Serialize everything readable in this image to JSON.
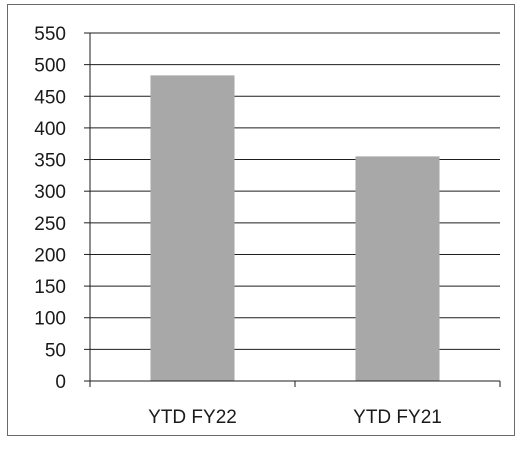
{
  "chart_data": {
    "type": "bar",
    "categories": [
      "YTD FY22",
      "YTD FY21"
    ],
    "values": [
      483,
      355
    ],
    "ylim": [
      0,
      550
    ],
    "ytick_step": 50,
    "ytick_labels": [
      "0",
      "50",
      "100",
      "150",
      "200",
      "250",
      "300",
      "350",
      "400",
      "450",
      "500",
      "550"
    ],
    "grid": true,
    "legend": "none",
    "bar_color": "#a8a8a8",
    "grid_color": "#1e1e1e",
    "title": "",
    "xlabel": "",
    "ylabel": ""
  }
}
